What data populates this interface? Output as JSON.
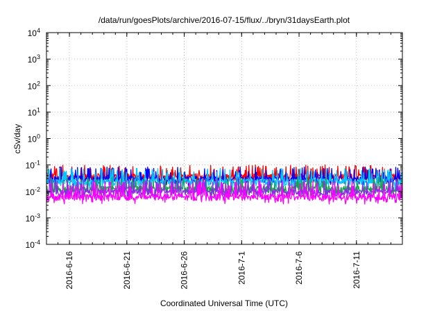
{
  "chart_data": {
    "type": "line",
    "title": "/data/run/goesPlots/archive/2016-07-15/flux/../bryn/31daysEarth.plot",
    "xlabel": "Coordinated Universal Time (UTC)",
    "ylabel": "cSv/day",
    "y_scale": "log",
    "ylim": [
      0.0001,
      10000
    ],
    "xlim": [
      "2016-06-14",
      "2016-07-15"
    ],
    "grid": true,
    "x_ticks": [
      {
        "date": "2016-06-16",
        "label": "2016-6-16"
      },
      {
        "date": "2016-06-21",
        "label": "2016-6-21"
      },
      {
        "date": "2016-06-26",
        "label": "2016-6-26"
      },
      {
        "date": "2016-07-01",
        "label": "2016-7-1"
      },
      {
        "date": "2016-07-06",
        "label": "2016-7-6"
      },
      {
        "date": "2016-07-11",
        "label": "2016-7-11"
      }
    ],
    "y_ticks": [
      {
        "value": 0.0001,
        "base": "10",
        "exp": "-4"
      },
      {
        "value": 0.001,
        "base": "10",
        "exp": "-3"
      },
      {
        "value": 0.01,
        "base": "10",
        "exp": "-2"
      },
      {
        "value": 0.1,
        "base": "10",
        "exp": "-1"
      },
      {
        "value": 1,
        "base": "10",
        "exp": "0"
      },
      {
        "value": 10,
        "base": "10",
        "exp": "1"
      },
      {
        "value": 100,
        "base": "10",
        "exp": "2"
      },
      {
        "value": 1000,
        "base": "10",
        "exp": "3"
      },
      {
        "value": 10000,
        "base": "10",
        "exp": "4"
      }
    ],
    "series": [
      {
        "color": "#ff0000",
        "baseline": 0.035,
        "peak": 0.1
      },
      {
        "color": "#0000ff",
        "baseline": 0.028,
        "peak": 0.085
      },
      {
        "color": "#00c8ff",
        "baseline": 0.022,
        "peak": 0.075
      },
      {
        "color": "#1aa050",
        "baseline": 0.012,
        "peak": 0.035
      },
      {
        "color": "#8a2be2",
        "baseline": 0.009,
        "peak": 0.03
      },
      {
        "color": "#ff00ff",
        "baseline": 0.006,
        "peak": 0.025
      }
    ]
  }
}
